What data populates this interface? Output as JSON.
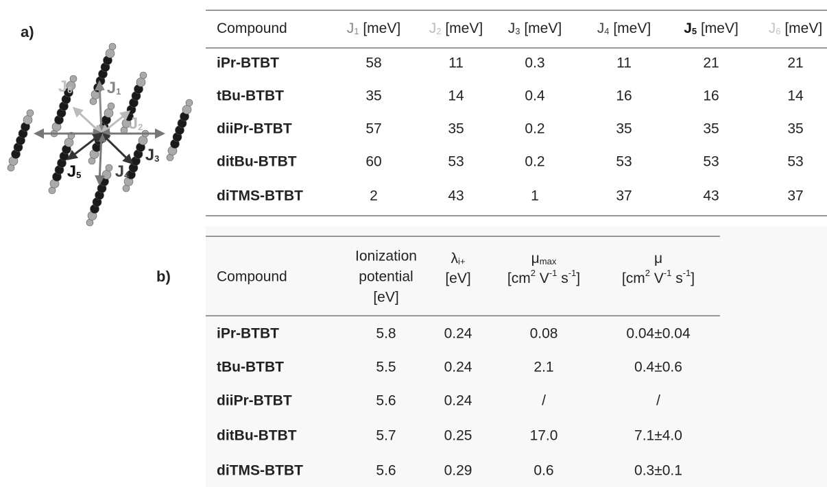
{
  "panel_a": {
    "label": "a)",
    "diagram": {
      "labels": [
        [
          "J",
          "1"
        ],
        [
          "J",
          "2"
        ],
        [
          "J",
          "3"
        ],
        [
          "J",
          "4"
        ],
        [
          "J",
          "5"
        ],
        [
          "J",
          "6"
        ]
      ]
    },
    "table": {
      "header": [
        "Compound",
        [
          "J",
          "1",
          " [meV]"
        ],
        [
          "J",
          "2",
          " [meV]"
        ],
        [
          "J",
          "3",
          " [meV]"
        ],
        [
          "J",
          "4",
          " [meV]"
        ],
        [
          "J",
          "5",
          " [meV]"
        ],
        [
          "J",
          "6",
          " [meV]"
        ]
      ],
      "rows": [
        [
          "iPr-BTBT",
          "58",
          "11",
          "0.3",
          "11",
          "21",
          "21"
        ],
        [
          "tBu-BTBT",
          "35",
          "14",
          "0.4",
          "16",
          "16",
          "14"
        ],
        [
          "diiPr-BTBT",
          "57",
          "35",
          "0.2",
          "35",
          "35",
          "35"
        ],
        [
          "ditBu-BTBT",
          "60",
          "53",
          "0.2",
          "53",
          "53",
          "53"
        ],
        [
          "diTMS-BTBT",
          "2",
          "43",
          "1",
          "37",
          "43",
          "37"
        ]
      ]
    }
  },
  "panel_b": {
    "label": "b)",
    "table": {
      "header": [
        "Compound",
        {
          "lines": [
            "Ionization",
            "potential",
            "[eV]"
          ]
        },
        {
          "symbol": [
            "λ",
            "i+"
          ],
          "unit": [
            "[eV]"
          ]
        },
        {
          "symbol": [
            "μ",
            "max"
          ],
          "unit": [
            "[cm",
            "2",
            " V",
            "-1",
            " s",
            "-1",
            "]"
          ]
        },
        {
          "symbol": [
            "μ"
          ],
          "unit": [
            "[cm",
            "2",
            " V",
            "-1",
            " s",
            "-1",
            "]"
          ]
        }
      ],
      "rows": [
        [
          "iPr-BTBT",
          "5.8",
          "0.24",
          "0.08",
          "0.04±0.04"
        ],
        [
          "tBu-BTBT",
          "5.5",
          "0.24",
          "2.1",
          "0.4±0.6"
        ],
        [
          "diiPr-BTBT",
          "5.6",
          "0.24",
          "/",
          "/"
        ],
        [
          "ditBu-BTBT",
          "5.7",
          "0.25",
          "17.0",
          "7.1±4.0"
        ],
        [
          "diTMS-BTBT",
          "5.6",
          "0.29",
          "0.6",
          "0.3±0.1"
        ]
      ]
    }
  }
}
